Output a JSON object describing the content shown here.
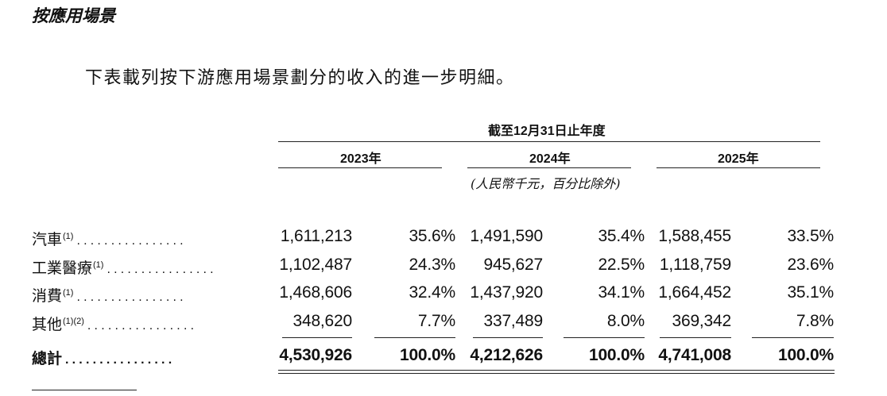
{
  "section_title": "按應用場景",
  "intro": "下表載列按下游應用場景劃分的收入的進一步明細。",
  "table": {
    "period_header": "截至12月31日止年度",
    "years": [
      "2023年",
      "2024年",
      "2025年"
    ],
    "unit_note": "(人民幣千元，百分比除外)",
    "dots": "................",
    "rows": [
      {
        "label": "汽車",
        "note": "(1)",
        "values": [
          "1,611,213",
          "35.6%",
          "1,491,590",
          "35.4%",
          "1,588,455",
          "33.5%"
        ]
      },
      {
        "label": "工業醫療",
        "note": "(1)",
        "values": [
          "1,102,487",
          "24.3%",
          "945,627",
          "22.5%",
          "1,118,759",
          "23.6%"
        ]
      },
      {
        "label": "消費",
        "note": "(1)",
        "values": [
          "1,468,606",
          "32.4%",
          "1,437,920",
          "34.1%",
          "1,664,452",
          "35.1%"
        ]
      },
      {
        "label": "其他",
        "note": "(1)(2)",
        "values": [
          "348,620",
          "7.7%",
          "337,489",
          "8.0%",
          "369,342",
          "7.8%"
        ]
      }
    ],
    "total": {
      "label": "總計",
      "values": [
        "4,530,926",
        "100.0%",
        "4,212,626",
        "100.0%",
        "4,741,008",
        "100.0%"
      ]
    }
  }
}
